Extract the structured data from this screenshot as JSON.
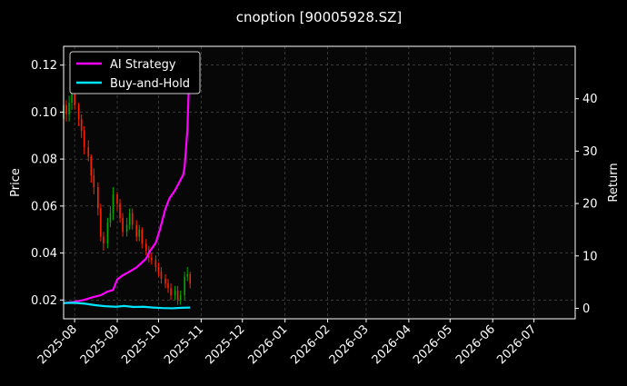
{
  "chart_data": {
    "type": "line",
    "title": "cnoption [90005928.SZ]",
    "ylabel_left": "Price",
    "ylabel_right": "Return",
    "x_range": [
      "2025-07-24",
      "2026-07-31"
    ],
    "ylim_left": [
      0.012,
      0.128
    ],
    "ylim_right": [
      -2.0,
      50.0
    ],
    "x_tick_labels": [
      "2025-08",
      "2025-09",
      "2025-10",
      "2025-11",
      "2025-12",
      "2026-01",
      "2026-02",
      "2026-03",
      "2026-04",
      "2026-05",
      "2026-06",
      "2026-07"
    ],
    "x_tick_dates": [
      "2025-08-01",
      "2025-09-01",
      "2025-10-01",
      "2025-11-01",
      "2025-12-01",
      "2026-01-01",
      "2026-02-01",
      "2026-03-01",
      "2026-04-01",
      "2026-05-01",
      "2026-06-01",
      "2026-07-01"
    ],
    "left_ticks": [
      "0.02",
      "0.04",
      "0.06",
      "0.08",
      "0.10",
      "0.12"
    ],
    "left_tick_values": [
      0.02,
      0.04,
      0.06,
      0.08,
      0.1,
      0.12
    ],
    "right_ticks": [
      "0",
      "10",
      "20",
      "30",
      "40"
    ],
    "right_tick_values": [
      0,
      10,
      20,
      30,
      40
    ],
    "grid": true,
    "legend_position": "top-left",
    "legend": [
      {
        "label": "AI Strategy",
        "color": "#ff00ff"
      },
      {
        "label": "Buy-and-Hold",
        "color": "#00e5ff"
      }
    ],
    "series": [
      {
        "name": "AI Strategy",
        "axis": "right",
        "color": "#ff00ff",
        "x": [
          "2025-07-24",
          "2025-07-31",
          "2025-08-08",
          "2025-08-14",
          "2025-08-20",
          "2025-08-25",
          "2025-08-29",
          "2025-09-01",
          "2025-09-05",
          "2025-09-10",
          "2025-09-15",
          "2025-09-18",
          "2025-09-22",
          "2025-09-25",
          "2025-09-29",
          "2025-10-02",
          "2025-10-06",
          "2025-10-09",
          "2025-10-13",
          "2025-10-16",
          "2025-10-18",
          "2025-10-19",
          "2025-10-20",
          "2025-10-22",
          "2025-10-23",
          "2025-10-24"
        ],
        "values": [
          1.0,
          1.2,
          1.6,
          2.1,
          2.5,
          3.2,
          3.5,
          5.5,
          6.3,
          7.0,
          7.8,
          8.5,
          9.5,
          11.0,
          12.5,
          15.0,
          19.0,
          21.0,
          22.5,
          24.0,
          25.0,
          25.5,
          27.0,
          34.0,
          42.0,
          48.0
        ]
      },
      {
        "name": "Buy-and-Hold",
        "axis": "right",
        "color": "#00e5ff",
        "x": [
          "2025-07-24",
          "2025-07-31",
          "2025-08-08",
          "2025-08-16",
          "2025-08-23",
          "2025-08-31",
          "2025-09-06",
          "2025-09-13",
          "2025-09-20",
          "2025-09-27",
          "2025-10-04",
          "2025-10-11",
          "2025-10-18",
          "2025-10-24"
        ],
        "values": [
          1.0,
          1.05,
          0.9,
          0.6,
          0.4,
          0.3,
          0.45,
          0.25,
          0.3,
          0.15,
          0.05,
          0.0,
          0.1,
          0.15
        ]
      }
    ],
    "candles": {
      "axis": "left",
      "up_color": "#00aa00",
      "down_color": "#ff2200",
      "date": [
        "2025-07-24",
        "2025-07-26",
        "2025-07-28",
        "2025-07-30",
        "2025-08-01",
        "2025-08-04",
        "2025-08-06",
        "2025-08-08",
        "2025-08-11",
        "2025-08-13",
        "2025-08-15",
        "2025-08-18",
        "2025-08-20",
        "2025-08-22",
        "2025-08-25",
        "2025-08-27",
        "2025-08-29",
        "2025-09-01",
        "2025-09-03",
        "2025-09-05",
        "2025-09-08",
        "2025-09-10",
        "2025-09-12",
        "2025-09-15",
        "2025-09-17",
        "2025-09-19",
        "2025-09-22",
        "2025-09-24",
        "2025-09-26",
        "2025-09-29",
        "2025-10-01",
        "2025-10-03",
        "2025-10-06",
        "2025-10-08",
        "2025-10-10",
        "2025-10-13",
        "2025-10-15",
        "2025-10-17",
        "2025-10-20",
        "2025-10-22",
        "2025-10-24"
      ],
      "open": [
        0.097,
        0.103,
        0.099,
        0.104,
        0.109,
        0.103,
        0.097,
        0.092,
        0.085,
        0.081,
        0.073,
        0.068,
        0.059,
        0.047,
        0.044,
        0.053,
        0.057,
        0.065,
        0.061,
        0.055,
        0.049,
        0.052,
        0.057,
        0.052,
        0.047,
        0.05,
        0.044,
        0.041,
        0.038,
        0.037,
        0.034,
        0.032,
        0.029,
        0.027,
        0.025,
        0.022,
        0.024,
        0.02,
        0.022,
        0.03,
        0.031
      ],
      "close": [
        0.103,
        0.099,
        0.104,
        0.109,
        0.103,
        0.097,
        0.092,
        0.085,
        0.081,
        0.073,
        0.068,
        0.059,
        0.047,
        0.044,
        0.053,
        0.057,
        0.065,
        0.061,
        0.055,
        0.049,
        0.052,
        0.057,
        0.052,
        0.047,
        0.05,
        0.044,
        0.041,
        0.038,
        0.037,
        0.034,
        0.032,
        0.029,
        0.027,
        0.025,
        0.022,
        0.024,
        0.02,
        0.022,
        0.03,
        0.031,
        0.027
      ],
      "high": [
        0.106,
        0.105,
        0.107,
        0.112,
        0.111,
        0.104,
        0.099,
        0.094,
        0.088,
        0.082,
        0.076,
        0.07,
        0.061,
        0.049,
        0.055,
        0.06,
        0.068,
        0.066,
        0.063,
        0.057,
        0.055,
        0.059,
        0.059,
        0.054,
        0.052,
        0.051,
        0.046,
        0.043,
        0.04,
        0.039,
        0.036,
        0.034,
        0.031,
        0.029,
        0.027,
        0.026,
        0.026,
        0.024,
        0.032,
        0.034,
        0.032
      ],
      "low": [
        0.093,
        0.096,
        0.096,
        0.101,
        0.101,
        0.094,
        0.089,
        0.082,
        0.079,
        0.07,
        0.065,
        0.056,
        0.045,
        0.041,
        0.042,
        0.051,
        0.054,
        0.058,
        0.053,
        0.047,
        0.047,
        0.05,
        0.05,
        0.045,
        0.045,
        0.042,
        0.039,
        0.036,
        0.035,
        0.032,
        0.03,
        0.027,
        0.025,
        0.023,
        0.02,
        0.02,
        0.018,
        0.018,
        0.02,
        0.028,
        0.025
      ]
    }
  }
}
